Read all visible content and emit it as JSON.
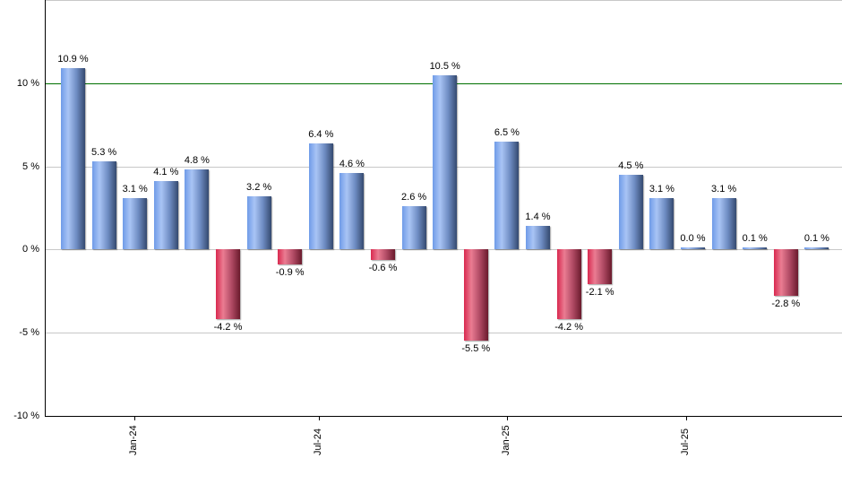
{
  "chart_data": {
    "type": "bar",
    "title": "",
    "xlabel": "",
    "ylabel": "",
    "ylim": [
      -10,
      15
    ],
    "yticks": [
      "-10 %",
      "-5 %",
      "0 %",
      "5 %",
      "10 %"
    ],
    "ytick_values": [
      -10,
      -5,
      0,
      5,
      10
    ],
    "xticks": [
      {
        "label": "Jan-24",
        "index": 2
      },
      {
        "label": "Jul-24",
        "index": 8
      },
      {
        "label": "Jan-25",
        "index": 14
      },
      {
        "label": "Jul-25",
        "index": 20
      }
    ],
    "reference_line": {
      "value": 10,
      "color": "#007000"
    },
    "grid": true,
    "legend": "none",
    "values": [
      10.9,
      5.3,
      3.1,
      4.1,
      4.8,
      -4.2,
      3.2,
      -0.9,
      6.4,
      4.6,
      -0.6,
      2.6,
      10.5,
      -5.5,
      6.5,
      1.4,
      -4.2,
      -2.1,
      4.5,
      3.1,
      0.0,
      3.1,
      0.1,
      -2.8,
      0.1
    ],
    "labels": [
      "10.9 %",
      "5.3 %",
      "3.1 %",
      "4.1 %",
      "4.8 %",
      "-4.2 %",
      "3.2 %",
      "-0.9 %",
      "6.4 %",
      "4.6 %",
      "-0.6 %",
      "2.6 %",
      "10.5 %",
      "-5.5 %",
      "6.5 %",
      "1.4 %",
      "-4.2 %",
      "-2.1 %",
      "4.5 %",
      "3.1 %",
      "0.0 %",
      "3.1 %",
      "0.1 %",
      "-2.8 %",
      "0.1 %"
    ],
    "colors": {
      "positive": "#7aa3ec",
      "negative": "#d9294f",
      "grid": "#c8c8c8",
      "axis": "#000000"
    }
  }
}
